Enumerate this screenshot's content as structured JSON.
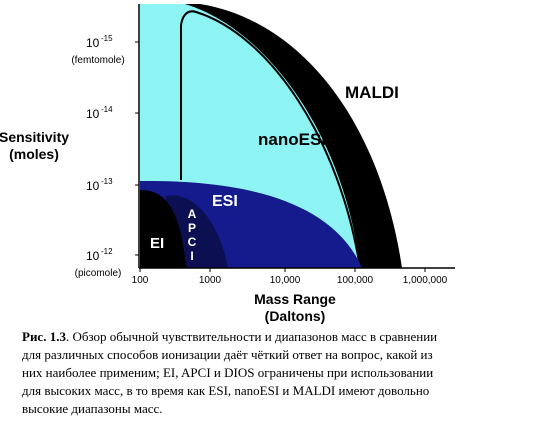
{
  "figure": {
    "y_axis": {
      "title": [
        "Sensitivity",
        "(moles)"
      ],
      "ticks": [
        {
          "base": "10",
          "exponent": "-15"
        },
        {
          "base": "10",
          "exponent": "-14"
        },
        {
          "base": "10",
          "exponent": "-13"
        },
        {
          "base": "10",
          "exponent": "-12"
        }
      ],
      "notes": [
        "(femtomole)",
        "(picomole)"
      ]
    },
    "x_axis": {
      "title": [
        "Mass Range",
        "(Daltons)"
      ],
      "ticks": [
        "100",
        "1000",
        "10,000",
        "100,000",
        "1,000,000"
      ]
    },
    "regions": [
      "MALDI",
      "nanoESI",
      "ESI",
      "A",
      "P",
      "C",
      "I",
      "EI"
    ],
    "caption": {
      "label": "Рис. 1.3",
      "lines": [
        ". Обзор обычной чувствительности и диапазонов масс в сравнении",
        "для различных способов ионизации даёт чёткий ответ на вопрос, какой из",
        "них наиболее применим; EI, APCI и DIOS ограничены при использовании",
        "для высоких масс, в то время как ESI, nanoESI и MALDI имеют довольно",
        "высокие диапазоны масс."
      ]
    }
  }
}
